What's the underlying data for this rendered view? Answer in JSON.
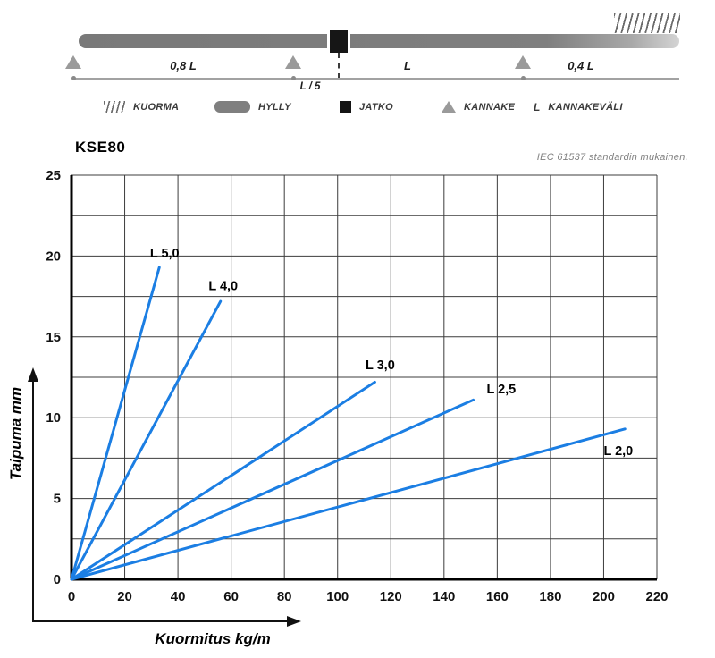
{
  "diagram": {
    "spans": {
      "span1": "0,8 L",
      "span2": "L",
      "span3": "0,4 L",
      "joint_offset": "L / 5"
    },
    "legend": [
      {
        "label": "KUORMA"
      },
      {
        "label": "HYLLY"
      },
      {
        "label": "JATKO"
      },
      {
        "label": "KANNAKE"
      },
      {
        "symbol": "L",
        "label": "KANNAKEVÄLI"
      }
    ],
    "colors": {
      "shelf": "#7f7f7f",
      "support": "#9a9a9a",
      "joint": "#141414"
    }
  },
  "chart": {
    "title": "KSE80",
    "note": "IEC 61537 standardin mukainen."
  },
  "chart_data": {
    "type": "line",
    "title": "KSE80",
    "xlabel": "Kuormitus kg/m",
    "ylabel": "Taipuma mm",
    "xlim": [
      0,
      220
    ],
    "ylim": [
      0,
      25
    ],
    "x_ticks": [
      0,
      20,
      40,
      60,
      80,
      100,
      120,
      140,
      160,
      180,
      200,
      220
    ],
    "y_ticks": [
      0,
      5,
      10,
      15,
      20,
      25
    ],
    "x_grid_step": 20,
    "y_grid_step": 2.5,
    "grid": true,
    "legend_position": "inline-labels",
    "line_color": "#1b7ee3",
    "axis_color": "#000000",
    "grid_color": "#3c3c3c",
    "series": [
      {
        "name": "L 5,0",
        "x": [
          0,
          33
        ],
        "y": [
          0,
          19.3
        ],
        "label_pos": [
          29.5,
          19.9
        ]
      },
      {
        "name": "L 4,0",
        "x": [
          0,
          56
        ],
        "y": [
          0,
          17.2
        ],
        "label_pos": [
          51.5,
          17.9
        ]
      },
      {
        "name": "L 3,0",
        "x": [
          0,
          114
        ],
        "y": [
          0,
          12.2
        ],
        "label_pos": [
          110.5,
          13.0
        ]
      },
      {
        "name": "L 2,5",
        "x": [
          0,
          151
        ],
        "y": [
          0,
          11.1
        ],
        "label_pos": [
          156,
          11.5
        ]
      },
      {
        "name": "L 2,0",
        "x": [
          0,
          208
        ],
        "y": [
          0,
          9.3
        ],
        "label_pos": [
          200,
          7.7
        ]
      }
    ]
  }
}
